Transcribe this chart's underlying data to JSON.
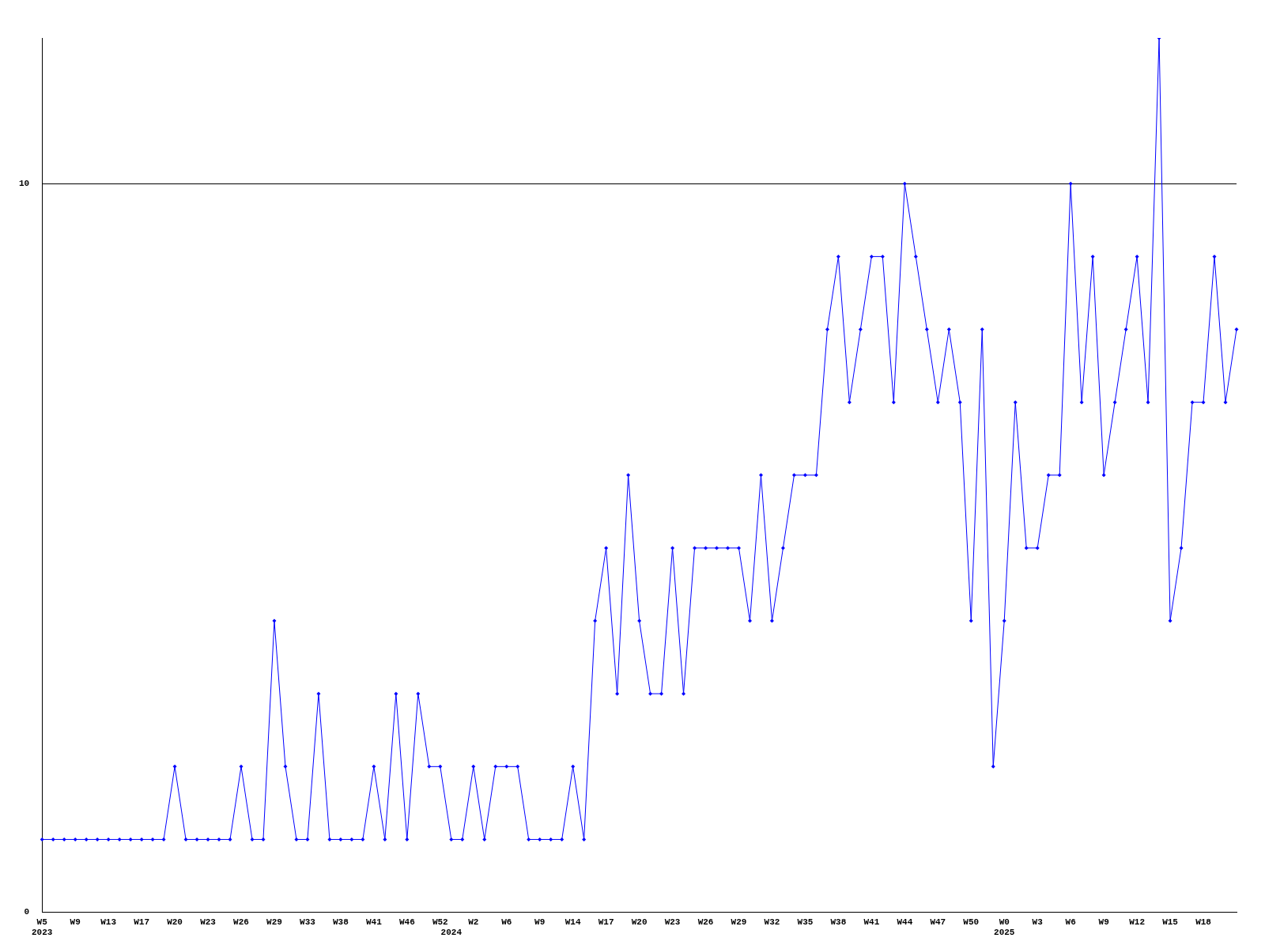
{
  "chart_data": {
    "type": "line",
    "categories": [
      "W5\n2023",
      null,
      null,
      "W9",
      null,
      null,
      "W13",
      null,
      null,
      "W17",
      null,
      null,
      "W20",
      null,
      null,
      "W23",
      null,
      null,
      "W26",
      null,
      null,
      "W29",
      null,
      null,
      "W33",
      null,
      null,
      "W38",
      null,
      null,
      "W41",
      null,
      null,
      "W46",
      null,
      null,
      "W52",
      "\n2024",
      null,
      "W2",
      null,
      null,
      "W6",
      null,
      null,
      "W9",
      null,
      null,
      "W14",
      null,
      null,
      "W17",
      null,
      null,
      "W20",
      null,
      null,
      "W23",
      null,
      null,
      "W26",
      null,
      null,
      "W29",
      null,
      null,
      "W32",
      null,
      null,
      "W35",
      null,
      null,
      "W38",
      null,
      null,
      "W41",
      null,
      null,
      "W44",
      null,
      null,
      "W47",
      null,
      null,
      "W50",
      null,
      null,
      "W0\n2025",
      null,
      null,
      "W3",
      null,
      null,
      "W6",
      null,
      null,
      "W9",
      null,
      null,
      "W12",
      null,
      null,
      "W15",
      null,
      null,
      "W18",
      null,
      null,
      null
    ],
    "series": [
      {
        "color": "#0000ff",
        "values": [
          1,
          1,
          1,
          1,
          1,
          1,
          1,
          1,
          1,
          1,
          1,
          1,
          2,
          1,
          1,
          1,
          1,
          1,
          2,
          1,
          1,
          4,
          2,
          1,
          1,
          3,
          1,
          1,
          1,
          1,
          2,
          1,
          3,
          1,
          3,
          2,
          2,
          1,
          1,
          2,
          1,
          2,
          2,
          2,
          1,
          1,
          1,
          1,
          2,
          1,
          4,
          5,
          3,
          6,
          4,
          3,
          3,
          5,
          3,
          5,
          5,
          5,
          5,
          5,
          4,
          6,
          4,
          5,
          6,
          6,
          6,
          8,
          9,
          7,
          8,
          9,
          9,
          7,
          10,
          9,
          8,
          7,
          8,
          7,
          4,
          8,
          2,
          4,
          7,
          5,
          5,
          6,
          6,
          10,
          7,
          9,
          6,
          7,
          8,
          9,
          7,
          12,
          4,
          5,
          7,
          7,
          9,
          7,
          8
        ]
      }
    ],
    "ylim": [
      0,
      12
    ],
    "yticks": [
      0,
      10
    ],
    "grid": "y",
    "legend": false,
    "marker": "diamond",
    "line_style": "solid"
  }
}
